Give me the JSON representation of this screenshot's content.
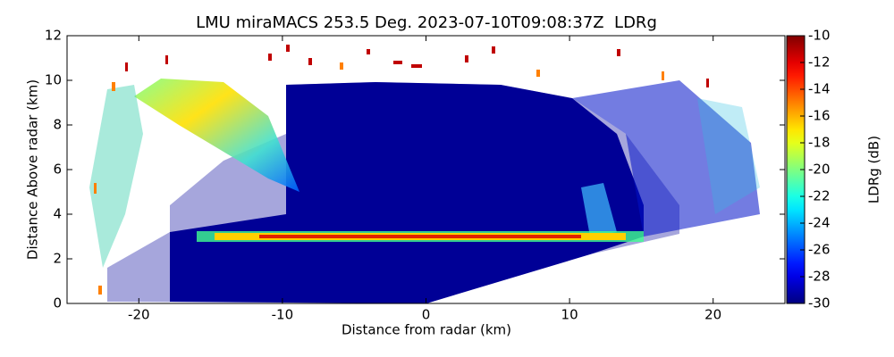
{
  "chart_data": {
    "type": "rhi",
    "title": "LMU miraMACS 253.5 Deg. 2023-07-10T09:08:37Z  LDRg",
    "x_label": "Distance from radar (km)",
    "y_label": "Distance Above radar  (km)",
    "xlim": [
      -25,
      25
    ],
    "xticks": [
      -20,
      -10,
      0,
      10,
      20
    ],
    "ylim": [
      0,
      12
    ],
    "yticks": [
      0,
      2,
      4,
      6,
      8,
      10,
      12
    ],
    "colormap": "jet",
    "colorbar_label": "LDRg (dB)",
    "clim": [
      -30,
      -10
    ],
    "cticks": [
      -30,
      -28,
      -26,
      -24,
      -22,
      -20,
      -18,
      -16,
      -14,
      -12,
      -10
    ]
  }
}
